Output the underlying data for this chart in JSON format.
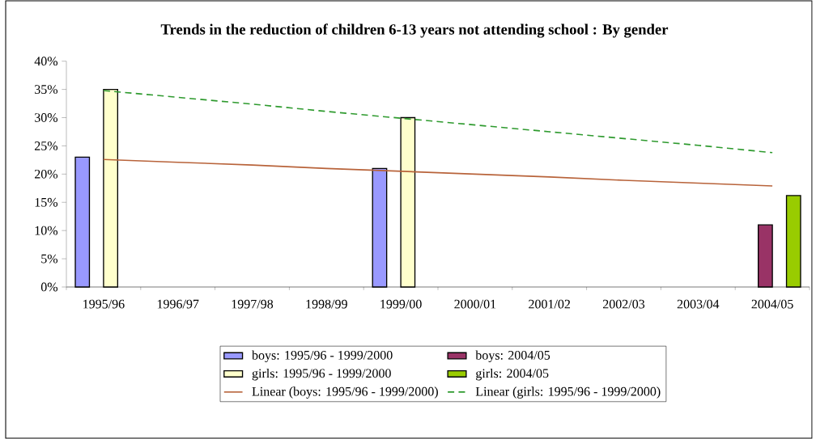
{
  "chart_data": {
    "type": "bar",
    "title": "Trends in the reduction of children 6-13 years not attending school : By gender",
    "categories": [
      "1995/96",
      "1996/97",
      "1997/98",
      "1998/99",
      "1999/00",
      "2000/01",
      "2001/02",
      "2002/03",
      "2003/04",
      "2004/05"
    ],
    "ylim": [
      0,
      40
    ],
    "yticks": [
      {
        "value": 0,
        "label": "0%"
      },
      {
        "value": 5,
        "label": "5%"
      },
      {
        "value": 10,
        "label": "10%"
      },
      {
        "value": 15,
        "label": "15%"
      },
      {
        "value": 20,
        "label": "20%"
      },
      {
        "value": 25,
        "label": "25%"
      },
      {
        "value": 30,
        "label": "30%"
      },
      {
        "value": 35,
        "label": "35%"
      },
      {
        "value": 40,
        "label": "40%"
      }
    ],
    "legend": "bottom",
    "series": [
      {
        "name": "boys: 1995/96 - 1999/2000",
        "color": "#9999ff",
        "values": [
          23,
          null,
          null,
          null,
          21,
          null,
          null,
          null,
          null,
          null
        ]
      },
      {
        "name": "boys: 2004/05",
        "color": "#993366",
        "values": [
          null,
          null,
          null,
          null,
          null,
          null,
          null,
          null,
          null,
          11
        ]
      },
      {
        "name": "girls: 1995/96 - 1999/2000",
        "color": "#ffffcc",
        "values": [
          35,
          null,
          null,
          null,
          30,
          null,
          null,
          null,
          null,
          null
        ]
      },
      {
        "name": "girls: 2004/05",
        "color": "#99cc00",
        "values": [
          null,
          null,
          null,
          null,
          null,
          null,
          null,
          null,
          null,
          16.2
        ]
      },
      {
        "name": "Linear (boys: 1995/96 - 1999/2000)",
        "type": "line",
        "color": "#b8633a",
        "line_style": "solid",
        "values": [
          22.6,
          22.1,
          21.6,
          21.0,
          20.5,
          20.0,
          19.5,
          18.9,
          18.4,
          17.9
        ]
      },
      {
        "name": "Linear (girls: 1995/96 - 1999/2000)",
        "type": "line",
        "color": "#2e9a2e",
        "line_style": "dashed",
        "values": [
          34.8,
          33.6,
          32.4,
          31.1,
          29.9,
          28.7,
          27.5,
          26.3,
          25.1,
          23.8
        ]
      }
    ]
  }
}
